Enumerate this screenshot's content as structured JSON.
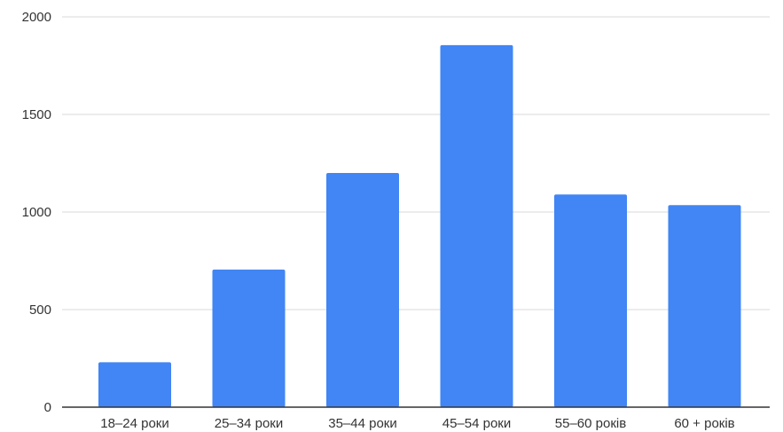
{
  "chart_data": {
    "type": "bar",
    "categories": [
      "18–24 роки",
      "25–34 роки",
      "35–44 роки",
      "45–54 роки",
      "55–60 років",
      "60 + років"
    ],
    "values": [
      230,
      705,
      1200,
      1855,
      1090,
      1035
    ],
    "ylim": [
      0,
      2000
    ],
    "yticks": [
      "0",
      "500",
      "1000",
      "1500",
      "2000"
    ],
    "grid": true,
    "bar_color": "#4285f4",
    "grid_color": "#d9d9d9",
    "axis_color": "#333333"
  }
}
